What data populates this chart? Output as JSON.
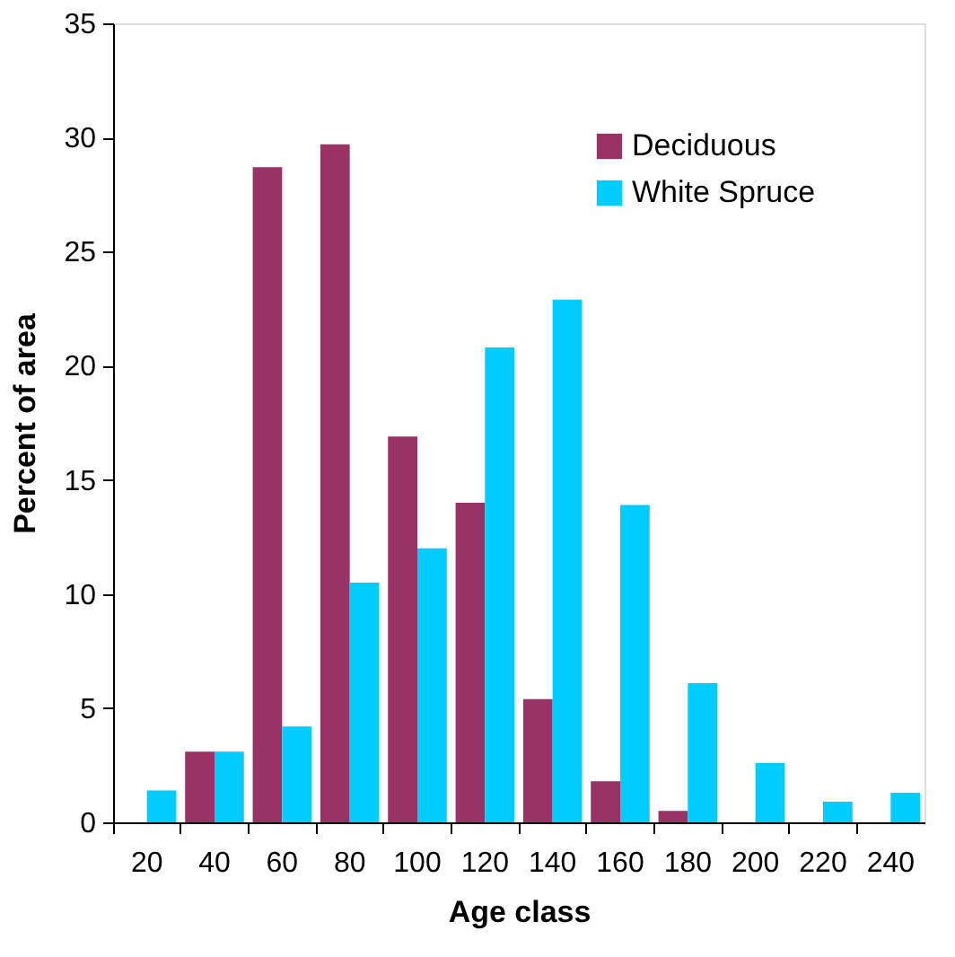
{
  "chart_data": {
    "type": "bar",
    "xlabel": "Age class",
    "ylabel": "Percent of area",
    "categories": [
      "20",
      "40",
      "60",
      "80",
      "100",
      "120",
      "140",
      "160",
      "180",
      "200",
      "220",
      "240"
    ],
    "series": [
      {
        "name": "Deciduous",
        "color": "#993366",
        "values": [
          null,
          3.1,
          28.7,
          29.7,
          16.9,
          14.0,
          5.4,
          1.8,
          0.5,
          null,
          null,
          null
        ]
      },
      {
        "name": "White Spruce",
        "color": "#00ccff",
        "values": [
          1.4,
          3.1,
          4.2,
          10.5,
          12.0,
          20.8,
          22.9,
          13.9,
          6.1,
          2.6,
          0.9,
          1.3
        ]
      }
    ],
    "ylim": [
      0,
      35
    ],
    "yticks": [
      0,
      5,
      10,
      15,
      20,
      25,
      30,
      35
    ],
    "grid": false,
    "legend": "top right"
  }
}
